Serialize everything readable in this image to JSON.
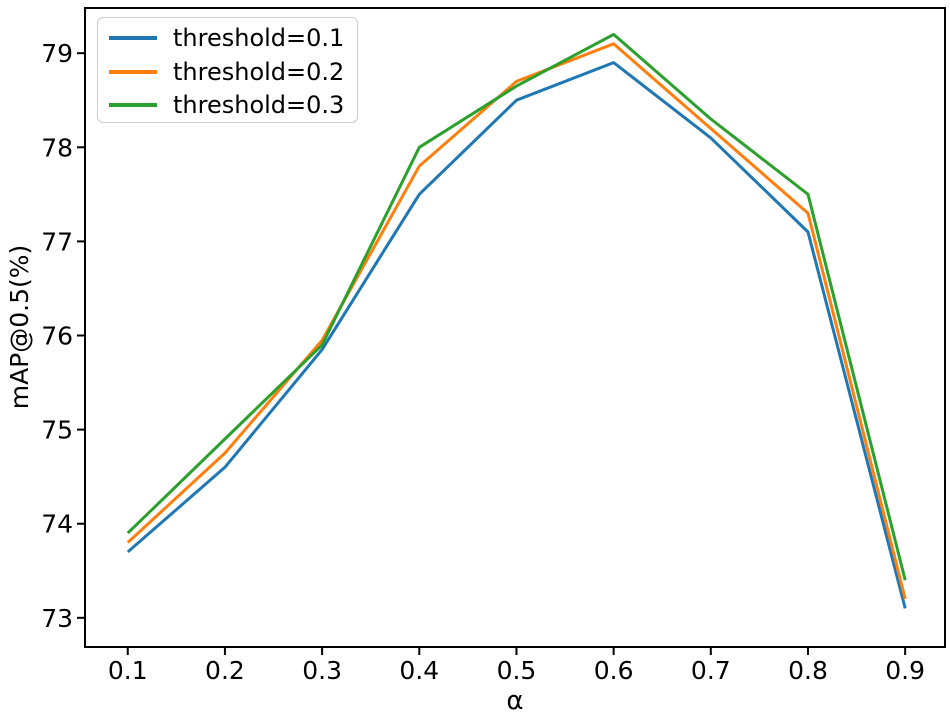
{
  "chart_data": {
    "type": "line",
    "title": "",
    "xlabel": "α",
    "ylabel": "mAP@0.5(%)",
    "grid": false,
    "legend_position": "upper left",
    "xlim": [
      0.056,
      0.941
    ],
    "ylim": [
      72.69,
      79.48
    ],
    "x": [
      0.1,
      0.2,
      0.3,
      0.4,
      0.5,
      0.6,
      0.7,
      0.8,
      0.9
    ],
    "xtick_labels": [
      "0.1",
      "0.2",
      "0.3",
      "0.4",
      "0.5",
      "0.6",
      "0.7",
      "0.8",
      "0.9"
    ],
    "ytick_values": [
      73,
      74,
      75,
      76,
      77,
      78,
      79
    ],
    "ytick_labels": [
      "73",
      "74",
      "75",
      "76",
      "77",
      "78",
      "79"
    ],
    "series": [
      {
        "name": "threshold=0.1",
        "color": "#1f77b4",
        "values": [
          73.7,
          74.6,
          75.85,
          77.5,
          78.5,
          78.9,
          78.1,
          77.1,
          73.1
        ]
      },
      {
        "name": "threshold=0.2",
        "color": "#ff7f0e",
        "values": [
          73.8,
          74.75,
          75.95,
          77.8,
          78.7,
          79.1,
          78.2,
          77.3,
          73.2
        ]
      },
      {
        "name": "threshold=0.3",
        "color": "#2ca02c",
        "values": [
          73.9,
          74.9,
          75.9,
          78.0,
          78.65,
          79.2,
          78.3,
          77.5,
          73.4
        ]
      }
    ]
  }
}
